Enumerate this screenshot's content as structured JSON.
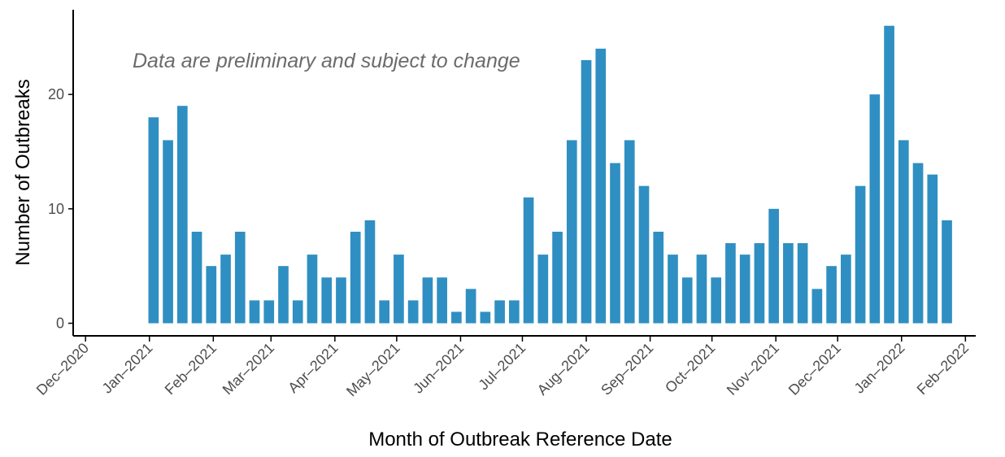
{
  "chart_data": {
    "type": "bar",
    "annotation": "Data are preliminary and subject to change",
    "x_label": "Month of Outbreak Reference Date",
    "y_label": "Number of Outbreaks",
    "color": "#2f8fc2",
    "x": [
      "2021-01-03",
      "2021-01-10",
      "2021-01-17",
      "2021-01-24",
      "2021-01-31",
      "2021-02-07",
      "2021-02-14",
      "2021-02-21",
      "2021-02-28",
      "2021-03-07",
      "2021-03-14",
      "2021-03-21",
      "2021-03-28",
      "2021-04-04",
      "2021-04-11",
      "2021-04-18",
      "2021-04-25",
      "2021-05-02",
      "2021-05-09",
      "2021-05-16",
      "2021-05-23",
      "2021-05-30",
      "2021-06-06",
      "2021-06-13",
      "2021-06-20",
      "2021-06-27",
      "2021-07-04",
      "2021-07-11",
      "2021-07-18",
      "2021-07-25",
      "2021-08-01",
      "2021-08-08",
      "2021-08-15",
      "2021-08-22",
      "2021-08-29",
      "2021-09-05",
      "2021-09-12",
      "2021-09-19",
      "2021-09-26",
      "2021-10-03",
      "2021-10-10",
      "2021-10-17",
      "2021-10-24",
      "2021-10-31",
      "2021-11-07",
      "2021-11-14",
      "2021-11-21",
      "2021-11-28",
      "2021-12-05",
      "2021-12-12",
      "2021-12-19",
      "2021-12-26",
      "2022-01-02",
      "2022-01-09",
      "2022-01-16",
      "2022-01-23"
    ],
    "values": [
      18,
      16,
      19,
      8,
      5,
      6,
      8,
      2,
      2,
      5,
      2,
      6,
      4,
      4,
      8,
      9,
      2,
      6,
      2,
      4,
      4,
      1,
      3,
      1,
      2,
      2,
      11,
      6,
      8,
      16,
      23,
      24,
      14,
      16,
      12,
      8,
      6,
      4,
      6,
      4,
      7,
      6,
      7,
      10,
      7,
      7,
      3,
      5,
      6,
      12,
      20,
      26,
      16,
      14,
      13,
      9
    ],
    "xlim": [
      "2020-11-25",
      "2022-02-06"
    ],
    "xticks": [
      {
        "value": "2020-12-01",
        "label": "Dec–2020"
      },
      {
        "value": "2021-01-01",
        "label": "Jan–2021"
      },
      {
        "value": "2021-02-01",
        "label": "Feb–2021"
      },
      {
        "value": "2021-03-01",
        "label": "Mar–2021"
      },
      {
        "value": "2021-04-01",
        "label": "Apr–2021"
      },
      {
        "value": "2021-05-01",
        "label": "May–2021"
      },
      {
        "value": "2021-06-01",
        "label": "Jun–2021"
      },
      {
        "value": "2021-07-01",
        "label": "Jul–2021"
      },
      {
        "value": "2021-08-01",
        "label": "Aug–2021"
      },
      {
        "value": "2021-09-01",
        "label": "Sep–2021"
      },
      {
        "value": "2021-10-01",
        "label": "Oct–2021"
      },
      {
        "value": "2021-11-01",
        "label": "Nov–2021"
      },
      {
        "value": "2021-12-01",
        "label": "Dec–2021"
      },
      {
        "value": "2022-01-01",
        "label": "Jan–2022"
      },
      {
        "value": "2022-02-01",
        "label": "Feb–2022"
      }
    ],
    "ylim": [
      -1.1,
      27.4
    ],
    "yticks": [
      0,
      10,
      20
    ],
    "grid": false
  }
}
